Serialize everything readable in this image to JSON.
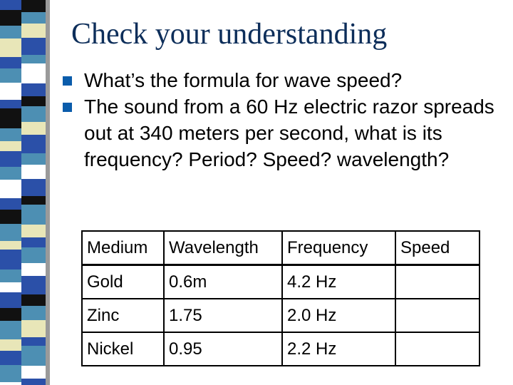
{
  "title": "Check your understanding",
  "bullets": [
    "What’s the formula for wave speed?",
    "The sound from a 60 Hz electric razor spreads out at 340 meters per second, what is its frequency? Period? Speed? wavelength?"
  ],
  "table": {
    "headers": [
      "Medium",
      "Wavelength",
      "Frequency",
      "Speed"
    ],
    "rows": [
      [
        "Gold",
        "0.6m",
        "4.2 Hz",
        ""
      ],
      [
        "Zinc",
        "1.75",
        "2.0 Hz",
        ""
      ],
      [
        "Nickel",
        "0.95",
        "2.2 Hz",
        ""
      ]
    ]
  },
  "colors": {
    "title": "#0d2e5a",
    "bullet": "#0a5cab",
    "stripe_blue": "#2b50a8",
    "stripe_teal": "#4d8fb3",
    "stripe_cream": "#e8e6b8",
    "stripe_black": "#111111",
    "stripe_white": "#ffffff"
  }
}
